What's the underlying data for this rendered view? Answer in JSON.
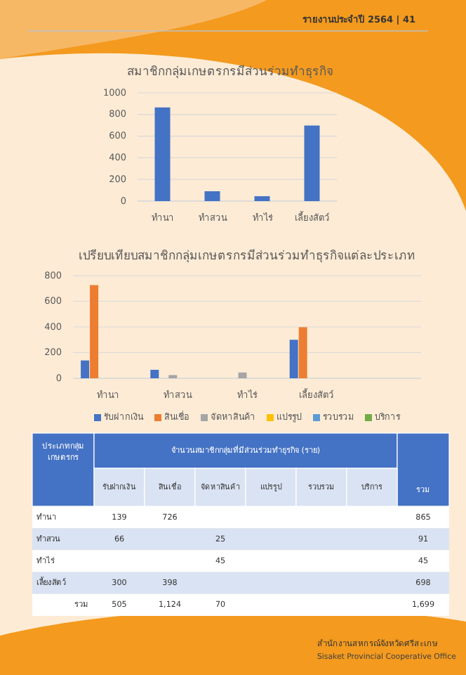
{
  "chart_data": [
    {
      "type": "bar",
      "title": "สมาชิกกลุ่มเกษตรกรมีส่วนร่วมทำธุรกิจ",
      "annotations": [
        "รายงานประจำปี 2564 | 41"
      ],
      "categories": [
        "ทำนา",
        "ทำสวน",
        "ทำไร่",
        "เลี้ยงสัตว์"
      ],
      "values": [
        865,
        91,
        45,
        698
      ],
      "color": "#4472c4",
      "ylim": [
        0,
        1000
      ],
      "yticks": [
        0,
        200,
        400,
        600,
        800,
        1000
      ],
      "grid": "y"
    },
    {
      "type": "bar",
      "title": "เปรียบเทียบสมาชิกกลุ่มเกษตรกรมีส่วนร่วมทำธุรกิจแต่ละประเภท",
      "categories": [
        "ทำนา",
        "ทำสวน",
        "ทำไร่",
        "เลี้ยงสัตว์",
        null
      ],
      "series": [
        {
          "name": "รับฝากเงิน",
          "color": "#4472c4",
          "values": [
            139,
            66,
            null,
            300,
            null
          ]
        },
        {
          "name": "สินเชื่อ",
          "color": "#ed7d31",
          "values": [
            726,
            null,
            null,
            398,
            null
          ]
        },
        {
          "name": "จัดหาสินค้า",
          "color": "#a5a5a5",
          "values": [
            null,
            25,
            45,
            null,
            null
          ]
        },
        {
          "name": "แปรรูป",
          "color": "#ffc000",
          "values": [
            null,
            null,
            null,
            null,
            null
          ]
        },
        {
          "name": "รวบรวม",
          "color": "#5b9bd5",
          "values": [
            null,
            null,
            null,
            null,
            null
          ]
        },
        {
          "name": "บริการ",
          "color": "#70ad47",
          "values": [
            null,
            null,
            null,
            null,
            null
          ]
        }
      ],
      "ylim": [
        0,
        800
      ],
      "yticks": [
        0,
        200,
        400,
        600,
        800
      ],
      "grid": "y",
      "legend": "bottom"
    },
    {
      "type": "other",
      "title": "จำนวนสมาชิกกลุ่มที่มีส่วนร่วมทำธุรกิจ (ราย)",
      "ylabel": "ประเภทกลุ่มเกษตรกร",
      "categories": [
        "รับฝากเงิน",
        "สินเชื่อ",
        "จัดหาสินค้า",
        "แปรรูป",
        "รวบรวม",
        "บริการ",
        "รวม"
      ],
      "y_categories": [
        "ทำนา",
        "ทำสวน",
        "ทำไร่",
        "เลี้ยงสัตว์",
        "รวม"
      ],
      "cell_labels": [
        [
          "139",
          "726",
          null,
          null,
          null,
          null,
          "865"
        ],
        [
          "66",
          null,
          "25",
          null,
          null,
          null,
          "91"
        ],
        [
          null,
          null,
          "45",
          null,
          null,
          null,
          "45"
        ],
        [
          "300",
          "398",
          null,
          null,
          null,
          null,
          "698"
        ],
        [
          "505",
          "1,124",
          "70",
          null,
          null,
          null,
          "1,699"
        ]
      ],
      "annotations": [
        "สำนักงานสหกรณ์จังหวัดศรีสะเกษ",
        "Sisaket Provincial Cooperative Office"
      ]
    }
  ]
}
